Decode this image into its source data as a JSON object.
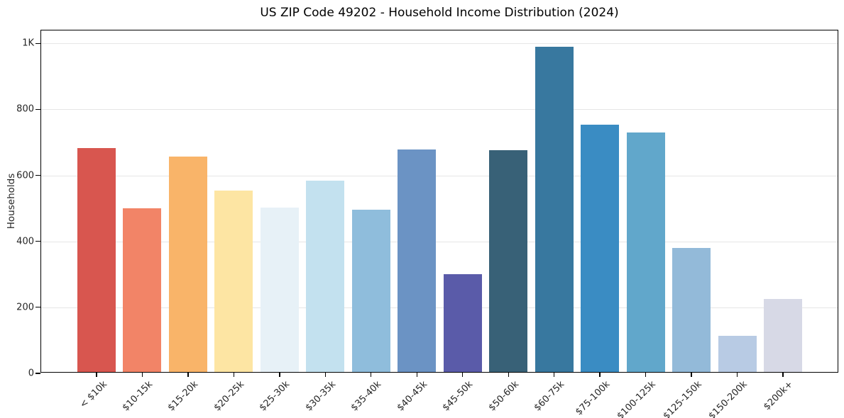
{
  "chart_data": {
    "type": "bar",
    "title": "US ZIP Code 49202 - Household Income Distribution (2024)",
    "xlabel": "",
    "ylabel": "Households",
    "categories": [
      "< $10k",
      "$10-15k",
      "$15-20k",
      "$20-25k",
      "$25-30k",
      "$30-35k",
      "$35-40k",
      "$40-45k",
      "$45-50k",
      "$50-60k",
      "$60-75k",
      "$75-100k",
      "$100-125k",
      "$125-150k",
      "$150-200k",
      "$200k+"
    ],
    "values": [
      678,
      495,
      652,
      550,
      498,
      580,
      491,
      675,
      297,
      672,
      985,
      750,
      725,
      376,
      110,
      221
    ],
    "bar_colors": [
      "#d8564f",
      "#f28467",
      "#f9b469",
      "#fde5a3",
      "#e7f1f7",
      "#c3e1ef",
      "#8fbddc",
      "#6b93c4",
      "#5a5ba9",
      "#386177",
      "#38789f",
      "#3a8cc3",
      "#61a7cb",
      "#93bad9",
      "#b8cbe4",
      "#d7d9e6"
    ],
    "ylim": [
      0,
      1039
    ],
    "yticks": [
      {
        "value": 0,
        "label": "0"
      },
      {
        "value": 200,
        "label": "200"
      },
      {
        "value": 400,
        "label": "400"
      },
      {
        "value": 600,
        "label": "600"
      },
      {
        "value": 800,
        "label": "800"
      },
      {
        "value": 1000,
        "label": "1K"
      }
    ],
    "grid": "horizontal",
    "legend": "none"
  },
  "colors": {
    "background": "#ffffff",
    "spine": "#000000",
    "grid": "#e6e6e6",
    "text": "#262626"
  }
}
